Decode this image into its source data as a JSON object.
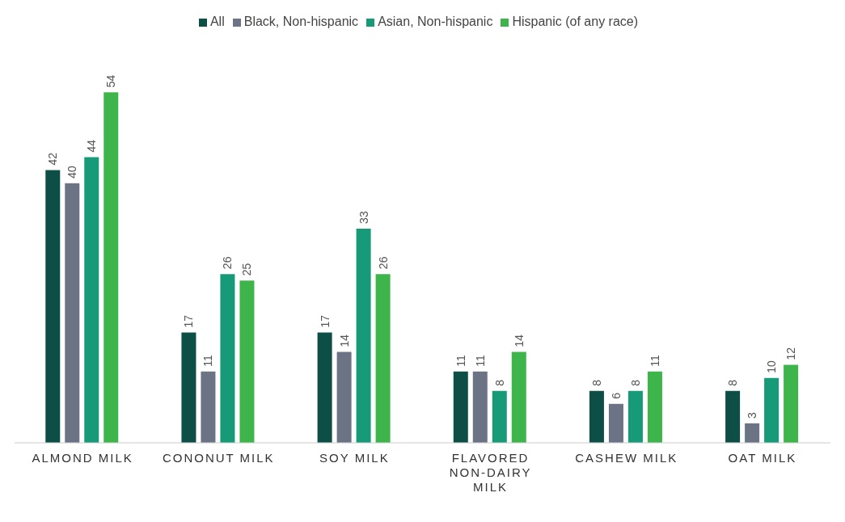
{
  "chart_data": {
    "type": "bar",
    "categories": [
      "ALMOND MILK",
      "CONONUT MILK",
      "SOY MILK",
      "FLAVORED NON-DAIRY MILK",
      "CASHEW MILK",
      "OAT MILK"
    ],
    "series": [
      {
        "name": "All",
        "color": "#0d4f47",
        "values": [
          42,
          17,
          17,
          11,
          8,
          8
        ]
      },
      {
        "name": "Black, Non-hispanic",
        "color": "#6b7385",
        "values": [
          40,
          11,
          14,
          11,
          6,
          3
        ]
      },
      {
        "name": "Asian, Non-hispanic",
        "color": "#169a78",
        "values": [
          44,
          26,
          33,
          8,
          8,
          10
        ]
      },
      {
        "name": "Hispanic (of any race)",
        "color": "#3db54a",
        "values": [
          54,
          25,
          26,
          14,
          11,
          12
        ]
      }
    ],
    "data_labels": true,
    "legend": "top"
  }
}
